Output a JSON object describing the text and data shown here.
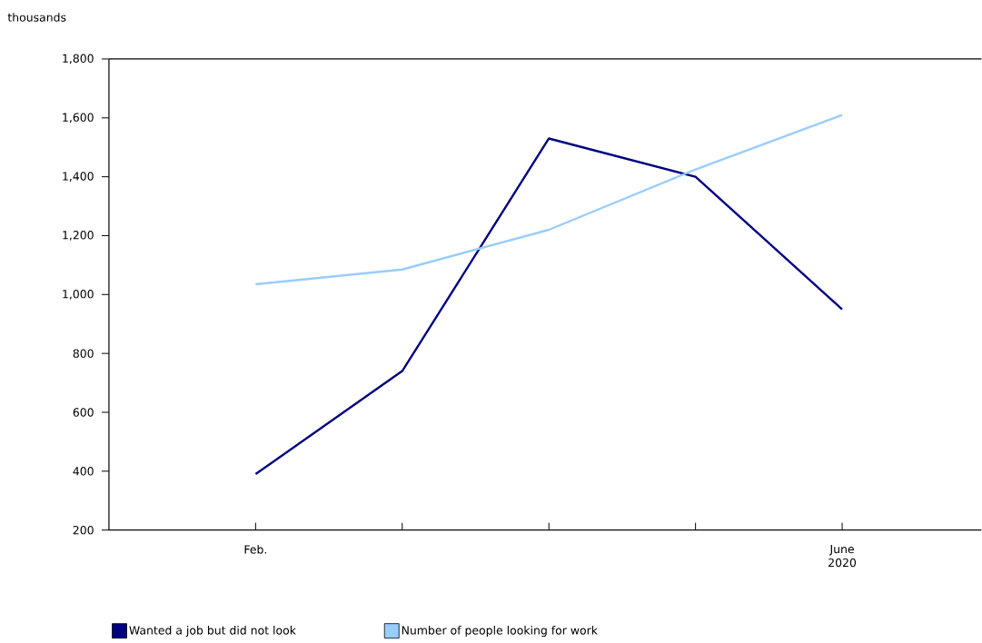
{
  "chart_data": {
    "type": "line",
    "ylabel": "thousands",
    "categories": [
      "Feb.",
      null,
      null,
      null,
      "June 2020"
    ],
    "ylim": [
      200,
      1800
    ],
    "yticks": [
      {
        "value": 200,
        "label": "200"
      },
      {
        "value": 400,
        "label": "400"
      },
      {
        "value": 600,
        "label": "600"
      },
      {
        "value": 800,
        "label": "800"
      },
      {
        "value": 1000,
        "label": "1,000"
      },
      {
        "value": 1200,
        "label": "1,200"
      },
      {
        "value": 1400,
        "label": "1,400"
      },
      {
        "value": 1600,
        "label": "1,600"
      },
      {
        "value": 1800,
        "label": "1,800"
      }
    ],
    "grid": false,
    "legend": "bottom",
    "marker": "none",
    "line_style": "solid",
    "series": [
      {
        "name": "Wanted a job but did not look",
        "color": "#000080",
        "values": [
          390,
          740,
          1530,
          1400,
          950
        ]
      },
      {
        "name": "Number of people looking for work",
        "color": "#99ccff",
        "values": [
          1035,
          1085,
          1220,
          1425,
          1610
        ]
      }
    ]
  }
}
